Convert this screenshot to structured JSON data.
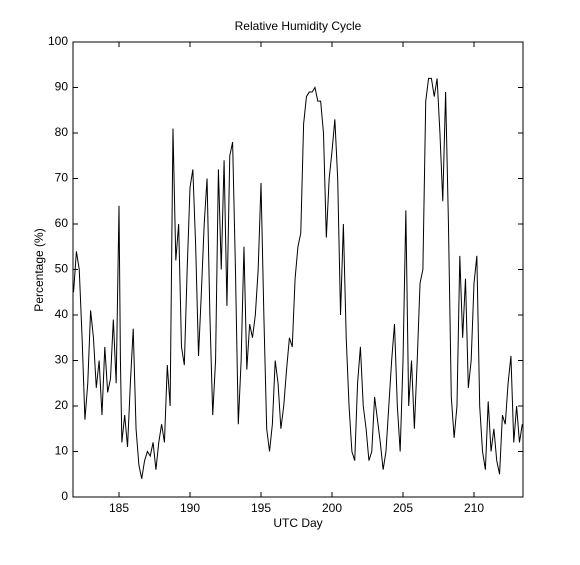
{
  "chart_data": {
    "type": "line",
    "title": "Relative Humidity Cycle",
    "x_label": "UTC Day",
    "y_label": "Percentage (%)",
    "x": [
      181.8,
      182.0,
      182.2,
      182.4,
      182.6,
      182.8,
      183.0,
      183.2,
      183.4,
      183.6,
      183.8,
      184.0,
      184.2,
      184.4,
      184.6,
      184.8,
      185.0,
      185.1,
      185.2,
      185.4,
      185.6,
      185.8,
      186.0,
      186.2,
      186.4,
      186.6,
      186.8,
      187.0,
      187.2,
      187.4,
      187.6,
      187.8,
      188.0,
      188.2,
      188.4,
      188.6,
      188.8,
      189.0,
      189.2,
      189.4,
      189.6,
      189.8,
      190.0,
      190.2,
      190.4,
      190.6,
      190.8,
      191.0,
      191.2,
      191.4,
      191.6,
      191.8,
      192.0,
      192.2,
      192.4,
      192.6,
      192.8,
      193.0,
      193.2,
      193.4,
      193.6,
      193.8,
      194.0,
      194.2,
      194.4,
      194.6,
      194.8,
      195.0,
      195.2,
      195.4,
      195.6,
      195.8,
      196.0,
      196.2,
      196.4,
      196.6,
      196.8,
      197.0,
      197.2,
      197.4,
      197.6,
      197.8,
      198.0,
      198.2,
      198.4,
      198.6,
      198.8,
      199.0,
      199.2,
      199.4,
      199.6,
      199.8,
      200.0,
      200.2,
      200.4,
      200.6,
      200.8,
      201.0,
      201.2,
      201.4,
      201.6,
      201.8,
      202.0,
      202.2,
      202.4,
      202.6,
      202.8,
      203.0,
      203.2,
      203.4,
      203.6,
      203.8,
      204.0,
      204.2,
      204.4,
      204.6,
      204.8,
      205.0,
      205.2,
      205.4,
      205.6,
      205.8,
      206.0,
      206.2,
      206.4,
      206.6,
      206.8,
      207.0,
      207.2,
      207.4,
      207.6,
      207.8,
      208.0,
      208.2,
      208.4,
      208.6,
      208.8,
      209.0,
      209.2,
      209.4,
      209.6,
      209.8,
      210.0,
      210.2,
      210.4,
      210.6,
      210.8,
      211.0,
      211.2,
      211.4,
      211.6,
      211.8,
      212.0,
      212.2,
      212.4,
      212.6,
      212.8,
      213.0,
      213.2,
      213.4
    ],
    "series": [
      {
        "name": "Relative Humidity",
        "color": "#000000",
        "values": [
          45,
          54,
          50,
          35,
          17,
          25,
          41,
          35,
          24,
          30,
          18,
          33,
          23,
          26,
          39,
          25,
          64,
          30,
          12,
          18,
          11,
          25,
          37,
          15,
          7,
          4,
          8,
          10,
          9,
          12,
          6,
          12,
          16,
          12,
          29,
          20,
          81,
          52,
          60,
          33,
          29,
          50,
          68,
          72,
          55,
          31,
          45,
          60,
          70,
          40,
          18,
          30,
          72,
          50,
          74,
          42,
          75,
          78,
          50,
          16,
          30,
          55,
          28,
          38,
          35,
          40,
          50,
          69,
          40,
          15,
          10,
          16,
          30,
          25,
          15,
          20,
          28,
          35,
          33,
          48,
          55,
          58,
          82,
          88,
          89,
          89,
          90,
          87,
          87,
          80,
          57,
          70,
          76,
          83,
          70,
          40,
          60,
          35,
          20,
          10,
          8,
          25,
          33,
          20,
          15,
          8,
          10,
          22,
          17,
          12,
          6,
          10,
          20,
          30,
          38,
          20,
          10,
          30,
          63,
          20,
          30,
          15,
          30,
          47,
          50,
          87,
          92,
          92,
          88,
          92,
          80,
          65,
          89,
          60,
          22,
          13,
          20,
          53,
          35,
          48,
          24,
          30,
          47,
          53,
          20,
          10,
          6,
          21,
          10,
          15,
          8,
          5,
          18,
          16,
          25,
          31,
          12,
          20,
          12,
          16
        ]
      }
    ],
    "xlim": [
      181.76,
      213.45
    ],
    "xticks": [
      185,
      190,
      195,
      200,
      205,
      210
    ],
    "ylim": [
      0,
      100
    ],
    "yticks": [
      0,
      10,
      20,
      30,
      40,
      50,
      60,
      70,
      80,
      90,
      100
    ]
  }
}
